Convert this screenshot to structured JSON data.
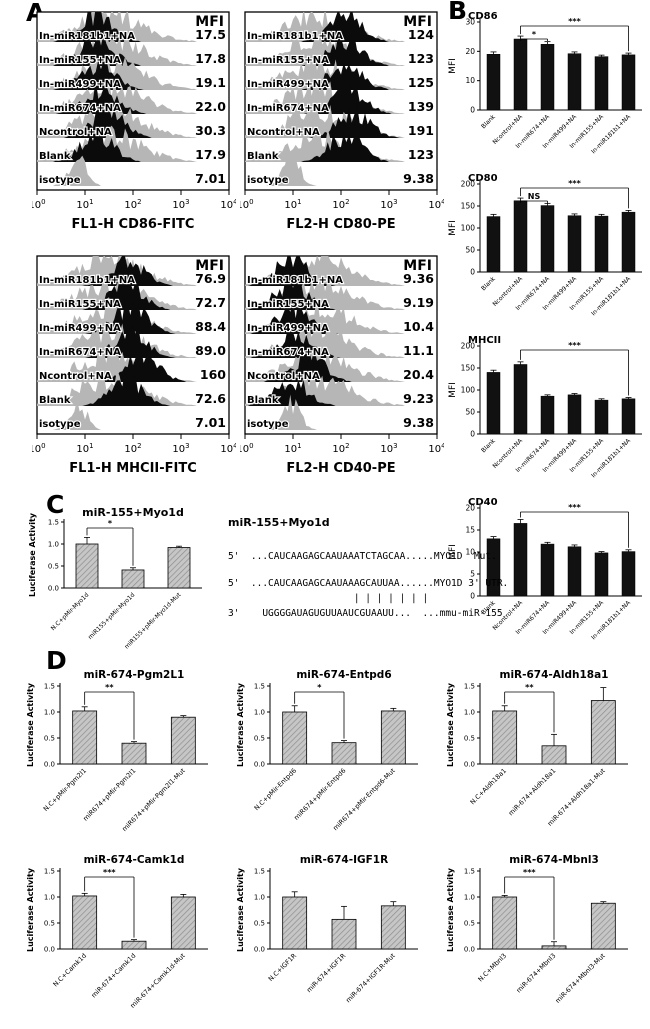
{
  "panels": {
    "a": "A",
    "b": "B",
    "c": "C",
    "d": "D"
  },
  "sequence_block": {
    "title": "miR-155+Myo1d",
    "line_mut": "5'  ...CAUCAAGAGCAAUAAATCTAGCAA.....MYO1D  Mut.",
    "line_utr": "5'  ...CAUCAAGAGCAAUAAAGCAUUAA......MYO1D 3' UTR.",
    "line_pairing": "                      | | | | | | |",
    "line_mirna": "3'    UGGGGAUAGUGUUAAUCGUAAUU...  ...mmu-miR-155"
  },
  "colors": {
    "bar_black": "#111111",
    "hist_gray": "#b6b6b6",
    "hist_black": "#0b0b0b",
    "hatch_gray": "#c6c6c6"
  },
  "chart_data": [
    {
      "id": "flow-cd86",
      "type": "flow-histogram",
      "panel": "A",
      "mfi_header": "MFI",
      "xlabel": "FL1-H  CD86-FITC",
      "x_ticks": [
        "0",
        "1",
        "2",
        "3",
        "4"
      ],
      "rows": [
        {
          "label": "In-miR181b1+NA",
          "mfi": "17.5"
        },
        {
          "label": "In-miR155+NA",
          "mfi": "17.8"
        },
        {
          "label": "In-miR499+NA",
          "mfi": "19.1"
        },
        {
          "label": "In-miR674+NA",
          "mfi": "22.0"
        },
        {
          "label": "Ncontrol+NA",
          "mfi": "30.3"
        },
        {
          "label": "Blank",
          "mfi": "17.9"
        },
        {
          "label": "isotype",
          "mfi": "7.01"
        }
      ]
    },
    {
      "id": "flow-cd80",
      "type": "flow-histogram",
      "panel": "A",
      "mfi_header": "MFI",
      "xlabel": "FL2-H  CD80-PE",
      "x_ticks": [
        "0",
        "1",
        "2",
        "3",
        "4"
      ],
      "rows": [
        {
          "label": "In-miR181b1+NA",
          "mfi": "124"
        },
        {
          "label": "In-miR155+NA",
          "mfi": "123"
        },
        {
          "label": "In-miR499+NA",
          "mfi": "125"
        },
        {
          "label": "In-miR674+NA",
          "mfi": "139"
        },
        {
          "label": "Ncontrol+NA",
          "mfi": "191"
        },
        {
          "label": "Blank",
          "mfi": "123"
        },
        {
          "label": "isotype",
          "mfi": "9.38"
        }
      ]
    },
    {
      "id": "flow-mhcii",
      "type": "flow-histogram",
      "panel": "A",
      "mfi_header": "MFI",
      "xlabel": "FL1-H  MHCII-FITC",
      "x_ticks": [
        "0",
        "1",
        "2",
        "3",
        "4"
      ],
      "rows": [
        {
          "label": "In-miR181b1+NA",
          "mfi": "76.9"
        },
        {
          "label": "In-miR155+NA",
          "mfi": "72.7"
        },
        {
          "label": "In-miR499+NA",
          "mfi": "88.4"
        },
        {
          "label": "In-miR674+NA",
          "mfi": "89.0"
        },
        {
          "label": "Ncontrol+NA",
          "mfi": "160"
        },
        {
          "label": "Blank",
          "mfi": "72.6"
        },
        {
          "label": "isotype",
          "mfi": "7.01"
        }
      ]
    },
    {
      "id": "flow-cd40",
      "type": "flow-histogram",
      "panel": "A",
      "mfi_header": "MFI",
      "xlabel": "FL2-H  CD40-PE",
      "x_ticks": [
        "0",
        "1",
        "2",
        "3",
        "4"
      ],
      "rows": [
        {
          "label": "In-miR181b1+NA",
          "mfi": "9.36"
        },
        {
          "label": "In-miR155+NA",
          "mfi": "9.19"
        },
        {
          "label": "In-miR499+NA",
          "mfi": "10.4"
        },
        {
          "label": "In-miR674+NA",
          "mfi": "11.1"
        },
        {
          "label": "Ncontrol+NA",
          "mfi": "20.4"
        },
        {
          "label": "Blank",
          "mfi": "9.23"
        },
        {
          "label": "isotype",
          "mfi": "9.38"
        }
      ]
    },
    {
      "id": "bar-cd86",
      "type": "bar",
      "panel": "B",
      "title": "CD86",
      "ylabel": "MFI",
      "ylim": [
        0,
        30
      ],
      "yticks": [
        0,
        10,
        20,
        30
      ],
      "categories": [
        "Blank",
        "Ncontrol+NA",
        "In-miR674+NA",
        "In-miR499+NA",
        "In-miR155+NA",
        "In-miR181b1+NA"
      ],
      "values": [
        19,
        24.2,
        22.4,
        19.2,
        18.2,
        18.8
      ],
      "errors": [
        0.8,
        1.0,
        0.9,
        0.6,
        0.5,
        0.6
      ],
      "significance": [
        {
          "from": 1,
          "to": 5,
          "label": "***"
        },
        {
          "from": 1,
          "to": 2,
          "label": "*"
        }
      ]
    },
    {
      "id": "bar-cd80",
      "type": "bar",
      "panel": "B",
      "title": "CD80",
      "ylabel": "MFI",
      "ylim": [
        0,
        200
      ],
      "yticks": [
        0,
        50,
        100,
        150,
        200
      ],
      "categories": [
        "Blank",
        "Ncontrol+NA",
        "In-miR674+NA",
        "In-miR499+NA",
        "In-miR155+NA",
        "In-miR181b1+NA"
      ],
      "values": [
        126,
        162,
        151,
        128,
        127,
        136
      ],
      "errors": [
        5,
        6,
        5,
        4,
        4,
        4
      ],
      "significance": [
        {
          "from": 1,
          "to": 5,
          "label": "***"
        },
        {
          "from": 1,
          "to": 2,
          "label": "NS"
        }
      ]
    },
    {
      "id": "bar-mhcii",
      "type": "bar",
      "panel": "B",
      "title": "MHCII",
      "ylabel": "MFI",
      "ylim": [
        0,
        200
      ],
      "yticks": [
        0,
        50,
        100,
        150,
        200
      ],
      "categories": [
        "Blank",
        "Ncontrol+NA",
        "In-miR674+NA",
        "In-miR499+NA",
        "In-miR155+NA",
        "In-miR181b1+NA"
      ],
      "values": [
        140,
        158,
        86,
        89,
        77,
        80
      ],
      "errors": [
        5,
        6,
        3,
        3,
        3,
        3
      ],
      "significance": [
        {
          "from": 1,
          "to": 5,
          "label": "***"
        }
      ]
    },
    {
      "id": "bar-cd40",
      "type": "bar",
      "panel": "B",
      "title": "CD40",
      "ylabel": "MFI",
      "ylim": [
        0,
        20
      ],
      "yticks": [
        0,
        5,
        10,
        15,
        20
      ],
      "categories": [
        "Blank",
        "Ncontrol+NA",
        "In-miR674+NA",
        "In-miR499+NA",
        "In-miR155+NA",
        "In-miR181b1+NA"
      ],
      "values": [
        13,
        16.5,
        11.8,
        11.2,
        9.8,
        10.1
      ],
      "errors": [
        0.5,
        0.9,
        0.4,
        0.4,
        0.3,
        0.4
      ],
      "significance": [
        {
          "from": 1,
          "to": 5,
          "label": "***"
        }
      ]
    },
    {
      "id": "luc-myo1d",
      "type": "bar",
      "panel": "C",
      "title": "miR-155+Myo1d",
      "ylabel": "Luciferase Activity",
      "ylim": [
        0,
        1.5
      ],
      "yticks": [
        0,
        0.5,
        1,
        1.5
      ],
      "ytick_format": "1dp",
      "categories": [
        "N.C+pMir-Myo1d",
        "miR155+pMir-Myo1d",
        "miR155+pMir-Myo1d-Mut"
      ],
      "values": [
        1.0,
        0.41,
        0.92
      ],
      "errors": [
        0.15,
        0.05,
        0.03
      ],
      "significance": [
        {
          "from": 0,
          "to": 1,
          "label": "*"
        }
      ]
    },
    {
      "id": "luc-pgm2l1",
      "type": "bar",
      "panel": "D",
      "title": "miR-674-Pgm2L1",
      "ylabel": "Luciferase Activity",
      "ylim": [
        0,
        1.5
      ],
      "yticks": [
        0,
        0.5,
        1,
        1.5
      ],
      "ytick_format": "1dp",
      "categories": [
        "N.C+pMir-Pgm2l1",
        "miR674+pMir-Pgm2l1",
        "miR674+pMir-Pgm2l1-Mut"
      ],
      "values": [
        1.02,
        0.4,
        0.9
      ],
      "errors": [
        0.08,
        0.03,
        0.03
      ],
      "significance": [
        {
          "from": 0,
          "to": 1,
          "label": "**"
        }
      ]
    },
    {
      "id": "luc-entpd6",
      "type": "bar",
      "panel": "D",
      "title": "miR-674-Entpd6",
      "ylabel": "Luciferase Activity",
      "ylim": [
        0,
        1.5
      ],
      "yticks": [
        0,
        0.5,
        1,
        1.5
      ],
      "ytick_format": "1dp",
      "categories": [
        "N.C+pMir-Entpd6",
        "miR674+pMir-Entpd6",
        "miR674+pMir-Entpd6-Mut"
      ],
      "values": [
        1.0,
        0.41,
        1.02
      ],
      "errors": [
        0.12,
        0.04,
        0.05
      ],
      "significance": [
        {
          "from": 0,
          "to": 1,
          "label": "*"
        }
      ]
    },
    {
      "id": "luc-aldh18a1",
      "type": "bar",
      "panel": "D",
      "title": "miR-674-Aldh18a1",
      "ylabel": "Luciferase Activity",
      "ylim": [
        0,
        1.5
      ],
      "yticks": [
        0,
        0.5,
        1,
        1.5
      ],
      "ytick_format": "1dp",
      "categories": [
        "N.C+Aldh18a1",
        "miR-674+Aldh18a1",
        "miR-674+Aldh18a1-Mut"
      ],
      "values": [
        1.02,
        0.35,
        1.22
      ],
      "errors": [
        0.1,
        0.22,
        0.25
      ],
      "significance": [
        {
          "from": 0,
          "to": 1,
          "label": "**"
        }
      ]
    },
    {
      "id": "luc-camk1d",
      "type": "bar",
      "panel": "D",
      "title": "miR-674-Camk1d",
      "ylabel": "Luciferase Activity",
      "ylim": [
        0,
        1.5
      ],
      "yticks": [
        0,
        0.5,
        1,
        1.5
      ],
      "ytick_format": "1dp",
      "categories": [
        "N.C+Camk1d",
        "miR-674+Camk1d",
        "miR-674+Camk1d-Mut"
      ],
      "values": [
        1.02,
        0.15,
        1.0
      ],
      "errors": [
        0.05,
        0.03,
        0.05
      ],
      "significance": [
        {
          "from": 0,
          "to": 1,
          "label": "***"
        }
      ]
    },
    {
      "id": "luc-igf1r",
      "type": "bar",
      "panel": "D",
      "title": "miR-674-IGF1R",
      "ylabel": "Luciferase Activity",
      "ylim": [
        0,
        1.5
      ],
      "yticks": [
        0,
        0.5,
        1,
        1.5
      ],
      "ytick_format": "1dp",
      "categories": [
        "N.C+IGF1R",
        "miR-674+IGF1R",
        "miR-674+IGF1R-Mut"
      ],
      "values": [
        1.0,
        0.57,
        0.83
      ],
      "errors": [
        0.1,
        0.25,
        0.08
      ],
      "significance": []
    },
    {
      "id": "luc-mbnl3",
      "type": "bar",
      "panel": "D",
      "title": "miR-674-Mbnl3",
      "ylabel": "Luciferase Activity",
      "ylim": [
        0,
        1.5
      ],
      "yticks": [
        0,
        0.5,
        1,
        1.5
      ],
      "ytick_format": "1dp",
      "categories": [
        "N.C+Mbnl3",
        "miR-674+Mbnl3",
        "miR-674+Mbnl3-Mut"
      ],
      "values": [
        1.0,
        0.06,
        0.88
      ],
      "errors": [
        0.03,
        0.08,
        0.03
      ],
      "significance": [
        {
          "from": 0,
          "to": 1,
          "label": "***"
        }
      ]
    }
  ]
}
